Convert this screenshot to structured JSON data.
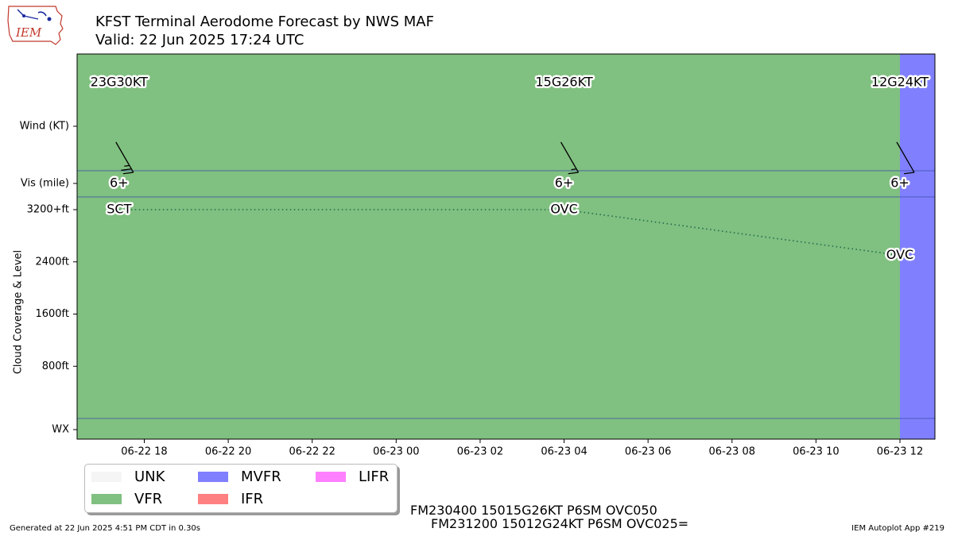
{
  "header": {
    "title": "KFST Terminal Aerodome Forecast by NWS MAF",
    "subtitle": "Valid: 22 Jun 2025 17:24 UTC",
    "logo_text": "IEM"
  },
  "chart_data": {
    "type": "timeline",
    "x_range": [
      "2025-06-22 16:24",
      "2025-06-23 12:50"
    ],
    "x_tick_labels": [
      "06-22 18",
      "06-22 20",
      "06-22 22",
      "06-23 00",
      "06-23 02",
      "06-23 04",
      "06-23 06",
      "06-23 08",
      "06-23 10",
      "06-23 12"
    ],
    "x_ticks": [
      "2025-06-22 18:00",
      "2025-06-22 20:00",
      "2025-06-22 22:00",
      "2025-06-23 00:00",
      "2025-06-23 02:00",
      "2025-06-23 04:00",
      "2025-06-23 06:00",
      "2025-06-23 08:00",
      "2025-06-23 10:00",
      "2025-06-23 12:00"
    ],
    "y_tick_labels": [
      "Wind (KT)",
      "Vis (mile)",
      "3200+ft",
      "2400ft",
      "1600ft",
      "800ft",
      "WX"
    ],
    "ylabel": "Cloud Coverage & Level",
    "flight_category_periods": [
      {
        "start": "2025-06-22 16:24",
        "end": "2025-06-23 12:00",
        "category": "VFR"
      },
      {
        "start": "2025-06-23 12:00",
        "end": "2025-06-23 12:50",
        "category": "MVFR"
      }
    ],
    "forecasts": [
      {
        "time": "2025-06-22 17:24",
        "wind_label": "23G30KT",
        "wind_dir_deg": 150,
        "wind_kt": 23,
        "vis_label": "6+",
        "cloud_label": "SCT",
        "cloud_level_ft": 3200
      },
      {
        "time": "2025-06-23 04:00",
        "wind_label": "15G26KT",
        "wind_dir_deg": 150,
        "wind_kt": 15,
        "vis_label": "6+",
        "cloud_label": "OVC",
        "cloud_level_ft": 3200
      },
      {
        "time": "2025-06-23 12:00",
        "wind_label": "12G24KT",
        "wind_dir_deg": 150,
        "wind_kt": 12,
        "vis_label": "6+",
        "cloud_label": "OVC",
        "cloud_level_ft": 2500
      }
    ]
  },
  "legend": {
    "items": [
      {
        "label": "UNK",
        "color": "#f5f5f5"
      },
      {
        "label": "VFR",
        "color": "#80c080"
      },
      {
        "label": "MVFR",
        "color": "#8080ff"
      },
      {
        "label": "IFR",
        "color": "#ff8080"
      },
      {
        "label": "LIFR",
        "color": "#ff80ff"
      }
    ]
  },
  "colors": {
    "vfr": "#80c080",
    "mvfr": "#8080ff",
    "cloud_line": "#1f6b4f",
    "separator": "#3b4aa8"
  },
  "taf_text": {
    "line1": "FM230400 15015G26KT P6SM OVC050",
    "line2": "FM231200 15012G24KT P6SM OVC025="
  },
  "footer": {
    "left": "Generated at 22 Jun 2025 4:51 PM CDT in 0.30s",
    "right": "IEM Autoplot App #219"
  }
}
